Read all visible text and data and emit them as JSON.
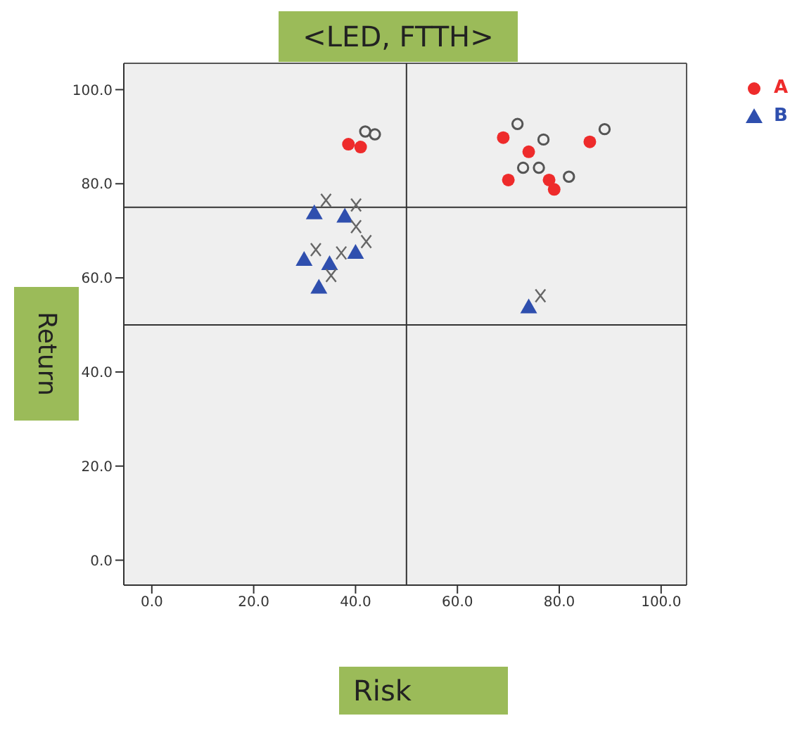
{
  "chart_data": {
    "type": "scatter",
    "title": "<LED, FTTH>",
    "xlabel": "Risk",
    "ylabel": "Return",
    "xlim": [
      -5.5,
      105
    ],
    "ylim": [
      -5.3,
      105.6
    ],
    "xticks": [
      {
        "value": 0,
        "label": "0.0"
      },
      {
        "value": 20,
        "label": "20.0"
      },
      {
        "value": 40,
        "label": "40.0"
      },
      {
        "value": 60,
        "label": "60.0"
      },
      {
        "value": 80,
        "label": "80.0"
      },
      {
        "value": 100,
        "label": "100.0"
      }
    ],
    "yticks": [
      {
        "value": 0,
        "label": "0.0"
      },
      {
        "value": 20,
        "label": "20.0"
      },
      {
        "value": 40,
        "label": "40.0"
      },
      {
        "value": 60,
        "label": "60.0"
      },
      {
        "value": 80,
        "label": "80.0"
      },
      {
        "value": 100,
        "label": "100.0"
      }
    ],
    "legend": "top right",
    "ref_lines": [
      {
        "axis": "x",
        "value": 50,
        "color": "#333333"
      },
      {
        "axis": "y",
        "value": 75,
        "color": "#333333"
      },
      {
        "axis": "y",
        "value": 50,
        "color": "#333333"
      }
    ],
    "series": [
      {
        "name": "A",
        "color": "#ee2b2b",
        "marker": "circle",
        "x": [
          38.6,
          41,
          69,
          74,
          86,
          70,
          78,
          79
        ],
        "values": [
          88.4,
          87.8,
          89.8,
          86.8,
          88.9,
          80.8,
          80.8,
          78.8
        ]
      },
      {
        "name": "B",
        "color": "#2f4fae",
        "marker": "triangle",
        "x": [
          31.9,
          37.9,
          40,
          29.9,
          34.9,
          32.8,
          74
        ],
        "values": [
          73.8,
          73.1,
          65.4,
          63.9,
          63,
          58,
          53.8
        ]
      },
      {
        "color": "#555555",
        "marker": "circle",
        "x": [
          41.9,
          43.8,
          71.8,
          76.9,
          88.9,
          72.9,
          76,
          81.9
        ],
        "values": [
          91.1,
          90.5,
          92.7,
          89.4,
          91.6,
          83.4,
          83.4,
          81.5
        ]
      },
      {
        "color": "#666666",
        "marker": "cross",
        "x": [
          34.2,
          40.1,
          40.1,
          42.1,
          32.2,
          37.2,
          35.2,
          76.3
        ],
        "values": [
          76.5,
          75.5,
          70.9,
          67.7,
          66,
          65.3,
          60.5,
          56.2
        ]
      }
    ]
  }
}
